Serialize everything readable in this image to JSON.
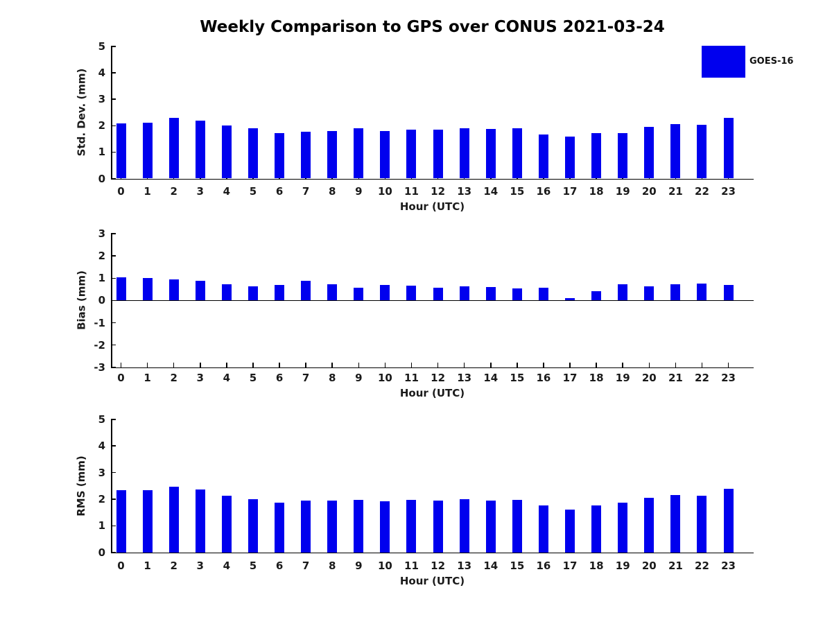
{
  "title": "Weekly Comparison to GPS over CONUS 2021-03-24",
  "legend": {
    "label": "GOES-16",
    "color": "#0000ee",
    "position": "upper-right-outside-axes"
  },
  "colors": {
    "bar": "#0000ee",
    "axis": "#000000",
    "text": "#1a1a1a",
    "background": "#ffffff"
  },
  "chart_data": [
    {
      "type": "bar",
      "title": "",
      "ylabel": "Std. Dev. (mm)",
      "xlabel": "Hour (UTC)",
      "series_name": "GOES-16",
      "categories": [
        "0",
        "1",
        "2",
        "3",
        "4",
        "5",
        "6",
        "7",
        "8",
        "9",
        "10",
        "11",
        "12",
        "13",
        "14",
        "15",
        "16",
        "17",
        "18",
        "19",
        "20",
        "21",
        "22",
        "23"
      ],
      "values": [
        2.09,
        2.11,
        2.3,
        2.19,
        2.01,
        1.91,
        1.73,
        1.76,
        1.8,
        1.91,
        1.8,
        1.85,
        1.85,
        1.91,
        1.88,
        1.9,
        1.66,
        1.6,
        1.72,
        1.73,
        1.96,
        2.06,
        2.03,
        2.3
      ],
      "ylim": [
        0,
        5
      ],
      "yticks": [
        0,
        1,
        2,
        3,
        4,
        5
      ],
      "grid": false,
      "bar_color": "#0000ee"
    },
    {
      "type": "bar",
      "title": "",
      "ylabel": "Bias (mm)",
      "xlabel": "Hour (UTC)",
      "series_name": "GOES-16",
      "categories": [
        "0",
        "1",
        "2",
        "3",
        "4",
        "5",
        "6",
        "7",
        "8",
        "9",
        "10",
        "11",
        "12",
        "13",
        "14",
        "15",
        "16",
        "17",
        "18",
        "19",
        "20",
        "21",
        "22",
        "23"
      ],
      "values": [
        1.03,
        1.0,
        0.95,
        0.89,
        0.73,
        0.64,
        0.7,
        0.88,
        0.73,
        0.59,
        0.69,
        0.67,
        0.56,
        0.64,
        0.61,
        0.55,
        0.59,
        0.1,
        0.43,
        0.72,
        0.64,
        0.72,
        0.77,
        0.71
      ],
      "ylim": [
        -3,
        3
      ],
      "yticks": [
        -3,
        -2,
        -1,
        0,
        1,
        2,
        3
      ],
      "zero_line": true,
      "grid": false,
      "bar_color": "#0000ee"
    },
    {
      "type": "bar",
      "title": "",
      "ylabel": "RMS (mm)",
      "xlabel": "Hour (UTC)",
      "series_name": "GOES-16",
      "categories": [
        "0",
        "1",
        "2",
        "3",
        "4",
        "5",
        "6",
        "7",
        "8",
        "9",
        "10",
        "11",
        "12",
        "13",
        "14",
        "15",
        "16",
        "17",
        "18",
        "19",
        "20",
        "21",
        "22",
        "23"
      ],
      "values": [
        2.33,
        2.33,
        2.47,
        2.36,
        2.12,
        2.0,
        1.87,
        1.94,
        1.94,
        1.96,
        1.91,
        1.96,
        1.94,
        1.99,
        1.95,
        1.96,
        1.76,
        1.61,
        1.77,
        1.87,
        2.04,
        2.16,
        2.13,
        2.39
      ],
      "ylim": [
        0,
        5
      ],
      "yticks": [
        0,
        1,
        2,
        3,
        4,
        5
      ],
      "grid": false,
      "bar_color": "#0000ee"
    }
  ]
}
